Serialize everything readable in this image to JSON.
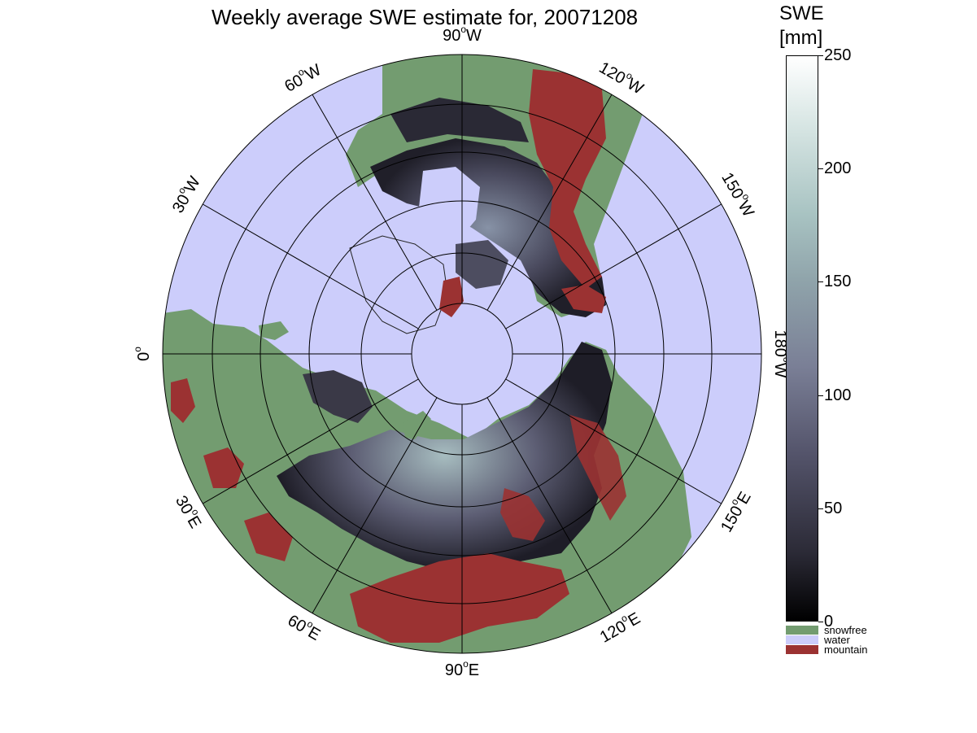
{
  "title": "Weekly average SWE estimate for, 20071208",
  "colorbar": {
    "title_line1": "SWE",
    "title_line2": "[mm]",
    "ticks": [
      {
        "value": 250,
        "label": "250"
      },
      {
        "value": 200,
        "label": "200"
      },
      {
        "value": 150,
        "label": "150"
      },
      {
        "value": 100,
        "label": "100"
      },
      {
        "value": 50,
        "label": "50"
      },
      {
        "value": 0,
        "label": "0"
      }
    ],
    "range": [
      0,
      250
    ]
  },
  "legend": [
    {
      "label": "snowfree",
      "color": "#739c70"
    },
    {
      "label": "water",
      "color": "#cccdfb"
    },
    {
      "label": "mountain",
      "color": "#9b3232"
    }
  ],
  "map": {
    "projection": "north polar stereographic",
    "longitude_labels": [
      {
        "lon": "90°W",
        "text": "90",
        "suffix": "W"
      },
      {
        "lon": "120°W",
        "text": "120",
        "suffix": "W"
      },
      {
        "lon": "150°W",
        "text": "150",
        "suffix": "W"
      },
      {
        "lon": "180°W",
        "text": "180",
        "suffix": "W"
      },
      {
        "lon": "150°E",
        "text": "150",
        "suffix": "E"
      },
      {
        "lon": "120°E",
        "text": "120",
        "suffix": "E"
      },
      {
        "lon": "90°E",
        "text": "90",
        "suffix": "E"
      },
      {
        "lon": "60°E",
        "text": "60",
        "suffix": "E"
      },
      {
        "lon": "30°E",
        "text": "30",
        "suffix": "E"
      },
      {
        "lon": "0°",
        "text": "0",
        "suffix": ""
      },
      {
        "lon": "30°W",
        "text": "30",
        "suffix": "W"
      },
      {
        "lon": "60°W",
        "text": "60",
        "suffix": "W"
      }
    ],
    "colors": {
      "water": "#cccdfb",
      "snowfree": "#739c70",
      "mountain": "#9b3232",
      "snow_low": "#1c1b24",
      "snow_mid": "#55556c",
      "snow_high": "#a3b8bd"
    }
  }
}
